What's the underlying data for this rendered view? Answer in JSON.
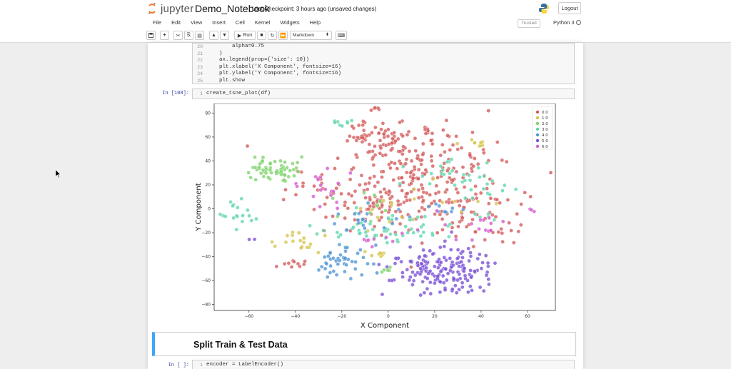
{
  "header": {
    "logo_word": "jupyter",
    "notebook_name": "Demo_Notebook",
    "checkpoint_text": "Last Checkpoint: 3 hours ago  (unsaved changes)",
    "logout_label": "Logout"
  },
  "menus": [
    "File",
    "Edit",
    "View",
    "Insert",
    "Cell",
    "Kernel",
    "Widgets",
    "Help"
  ],
  "trusted_label": "Trusted",
  "kernel_name": "Python 3",
  "toolbar": {
    "run_label": "Run",
    "cell_type": "Markdown",
    "icons": [
      "save-icon",
      "plus-icon",
      "cut-icon",
      "copy-icon",
      "paste-icon",
      "up-arrow-icon",
      "down-arrow-icon",
      "run-icon",
      "stop-icon",
      "restart-icon",
      "fast-forward-icon",
      "keyboard-icon"
    ]
  },
  "cell1": {
    "line_numbers": [
      "20",
      "21",
      "22",
      "23",
      "24",
      "25"
    ],
    "lines": [
      "        alpha=0.75",
      "    )",
      "    ax.legend(prop={'size': 10})",
      "    plt.xlabel('X Component', fontsize=16)",
      "    plt.ylabel('Y Component', fontsize=16)",
      "    plt.show"
    ]
  },
  "cell2": {
    "prompt": "In [108]:",
    "line_number": "1",
    "code": "create_tsne_plot(df)"
  },
  "markdown_heading": "Split Train & Test Data",
  "cell3": {
    "prompt": "In [ ]:",
    "line_number": "1",
    "code": "encoder = LabelEncoder()"
  },
  "chart_data": {
    "type": "scatter",
    "xlabel": "X Component",
    "ylabel": "Y Component",
    "xlim": [
      -75,
      72
    ],
    "ylim": [
      -85,
      88
    ],
    "xticks": [
      -60,
      -40,
      -20,
      0,
      20,
      40,
      60
    ],
    "yticks": [
      -80,
      -60,
      -40,
      -20,
      0,
      20,
      40,
      60,
      80
    ],
    "grid": false,
    "legend_position": "top-right",
    "series": [
      {
        "name": "0.0",
        "color": "#d45a5a",
        "clusters": [
          {
            "cx": -5,
            "cy": 60,
            "sx": 6,
            "sy": 6,
            "n": 55
          },
          {
            "cx": 15,
            "cy": 30,
            "sx": 18,
            "sy": 18,
            "n": 170
          },
          {
            "cx": -5,
            "cy": 5,
            "sx": 15,
            "sy": 12,
            "n": 90
          },
          {
            "cx": 18,
            "cy": 66,
            "sx": 8,
            "sy": 3,
            "n": 12
          },
          {
            "cx": 30,
            "cy": 2,
            "sx": 16,
            "sy": 14,
            "n": 60
          },
          {
            "cx": -42,
            "cy": -47,
            "sx": 4,
            "sy": 2,
            "n": 10
          },
          {
            "cx": 50,
            "cy": -17,
            "sx": 8,
            "sy": 6,
            "n": 12
          },
          {
            "cx": -35,
            "cy": 20,
            "sx": 6,
            "sy": 6,
            "n": 12
          },
          {
            "cx": -5,
            "cy": 84,
            "sx": 2,
            "sy": 1,
            "n": 5
          }
        ]
      },
      {
        "name": "1.0",
        "color": "#d6c44a",
        "clusters": [
          {
            "cx": -37,
            "cy": -27,
            "sx": 4,
            "sy": 4,
            "n": 18
          },
          {
            "cx": 40,
            "cy": 54,
            "sx": 4,
            "sy": 2,
            "n": 9
          },
          {
            "cx": -5,
            "cy": -38,
            "sx": 3,
            "sy": 2,
            "n": 8
          },
          {
            "cx": 10,
            "cy": 0,
            "sx": 15,
            "sy": 10,
            "n": 18
          }
        ]
      },
      {
        "name": "2.0",
        "color": "#7fd36b",
        "clusters": [
          {
            "cx": -50,
            "cy": 33,
            "sx": 5,
            "sy": 5,
            "n": 60
          },
          {
            "cx": -10,
            "cy": 0,
            "sx": 10,
            "sy": 10,
            "n": 12
          },
          {
            "cx": -2,
            "cy": -51,
            "sx": 2,
            "sy": 2,
            "n": 5
          }
        ]
      },
      {
        "name": "3.0",
        "color": "#5fd6ad",
        "clusters": [
          {
            "cx": -66,
            "cy": -2,
            "sx": 4,
            "sy": 6,
            "n": 18
          },
          {
            "cx": -20,
            "cy": 70,
            "sx": 3,
            "sy": 2,
            "n": 8
          },
          {
            "cx": -5,
            "cy": -20,
            "sx": 10,
            "sy": 6,
            "n": 35
          },
          {
            "cx": 30,
            "cy": 30,
            "sx": 10,
            "sy": 8,
            "n": 25
          },
          {
            "cx": 10,
            "cy": -12,
            "sx": 15,
            "sy": 10,
            "n": 20
          },
          {
            "cx": 45,
            "cy": 10,
            "sx": 8,
            "sy": 10,
            "n": 14
          }
        ]
      },
      {
        "name": "4.0",
        "color": "#4f95d6",
        "clusters": [
          {
            "cx": -20,
            "cy": -42,
            "sx": 6,
            "sy": 6,
            "n": 45
          },
          {
            "cx": -10,
            "cy": -10,
            "sx": 8,
            "sy": 6,
            "n": 20
          },
          {
            "cx": 25,
            "cy": 0,
            "sx": 6,
            "sy": 4,
            "n": 10
          }
        ]
      },
      {
        "name": "5.0",
        "color": "#7a4fd6",
        "clusters": [
          {
            "cx": 18,
            "cy": -53,
            "sx": 9,
            "sy": 10,
            "n": 110
          },
          {
            "cx": 33,
            "cy": -52,
            "sx": 6,
            "sy": 10,
            "n": 60
          },
          {
            "cx": -60,
            "cy": -27,
            "sx": 1,
            "sy": 1,
            "n": 2
          }
        ]
      },
      {
        "name": "6.0",
        "color": "#d45ad0",
        "clusters": [
          {
            "cx": -28,
            "cy": 20,
            "sx": 5,
            "sy": 10,
            "n": 18
          },
          {
            "cx": 62,
            "cy": -1,
            "sx": 1,
            "sy": 1,
            "n": 3
          },
          {
            "cx": 35,
            "cy": -15,
            "sx": 12,
            "sy": 5,
            "n": 15
          },
          {
            "cx": 0,
            "cy": -25,
            "sx": 6,
            "sy": 3,
            "n": 8
          }
        ]
      }
    ]
  }
}
